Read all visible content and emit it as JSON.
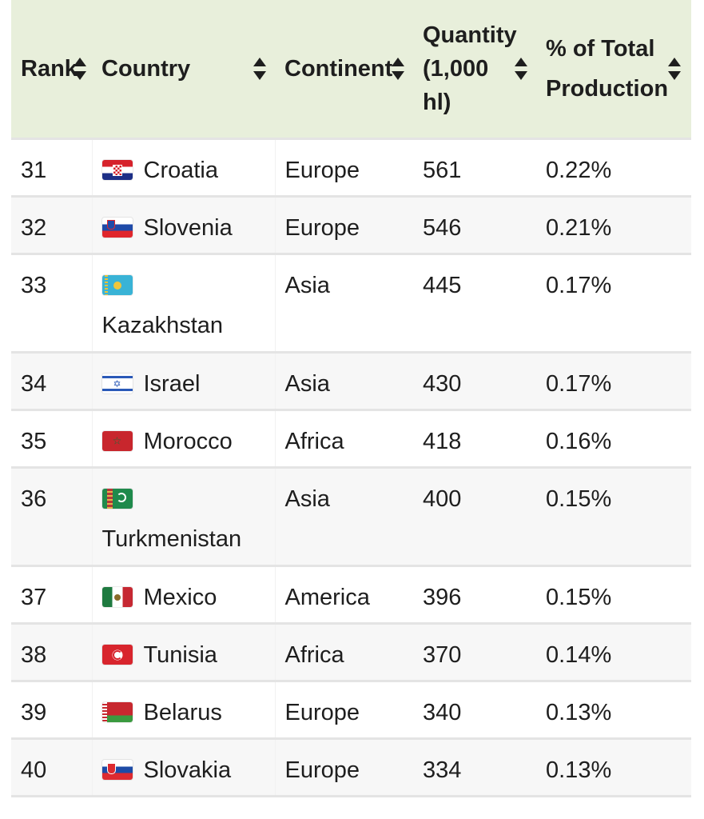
{
  "table": {
    "headers": {
      "rank": "Rank",
      "country": "Country",
      "continent": "Continent",
      "quantity": "Quantity (1,000 hl)",
      "percent": "% of Total Production"
    },
    "rows": [
      {
        "rank": "31",
        "country": "Croatia",
        "continent": "Europe",
        "quantity": "561",
        "percent": "0.22%",
        "flag": "croatia-flag-icon"
      },
      {
        "rank": "32",
        "country": "Slovenia",
        "continent": "Europe",
        "quantity": "546",
        "percent": "0.21%",
        "flag": "slovenia-flag-icon"
      },
      {
        "rank": "33",
        "country": "Kazakhstan",
        "continent": "Asia",
        "quantity": "445",
        "percent": "0.17%",
        "flag": "kazakhstan-flag-icon"
      },
      {
        "rank": "34",
        "country": "Israel",
        "continent": "Asia",
        "quantity": "430",
        "percent": "0.17%",
        "flag": "israel-flag-icon"
      },
      {
        "rank": "35",
        "country": "Morocco",
        "continent": "Africa",
        "quantity": "418",
        "percent": "0.16%",
        "flag": "morocco-flag-icon"
      },
      {
        "rank": "36",
        "country": "Turkmenistan",
        "continent": "Asia",
        "quantity": "400",
        "percent": "0.15%",
        "flag": "turkmenistan-flag-icon"
      },
      {
        "rank": "37",
        "country": "Mexico",
        "continent": "America",
        "quantity": "396",
        "percent": "0.15%",
        "flag": "mexico-flag-icon"
      },
      {
        "rank": "38",
        "country": "Tunisia",
        "continent": "Africa",
        "quantity": "370",
        "percent": "0.14%",
        "flag": "tunisia-flag-icon"
      },
      {
        "rank": "39",
        "country": "Belarus",
        "continent": "Europe",
        "quantity": "340",
        "percent": "0.13%",
        "flag": "belarus-flag-icon"
      },
      {
        "rank": "40",
        "country": "Slovakia",
        "continent": "Europe",
        "quantity": "334",
        "percent": "0.13%",
        "flag": "slovakia-flag-icon"
      }
    ]
  },
  "colors": {
    "header_bg": "#e8efdb",
    "row_alt_bg": "#f7f7f7",
    "border": "#e4e4e4",
    "text": "#1e1e1e"
  }
}
